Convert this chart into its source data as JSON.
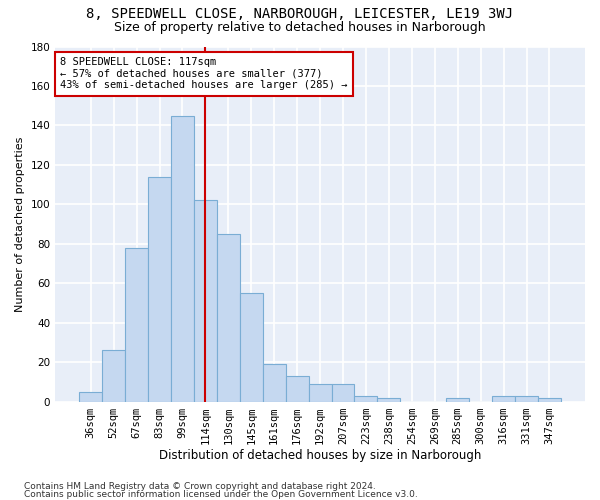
{
  "title1": "8, SPEEDWELL CLOSE, NARBOROUGH, LEICESTER, LE19 3WJ",
  "title2": "Size of property relative to detached houses in Narborough",
  "xlabel": "Distribution of detached houses by size in Narborough",
  "ylabel": "Number of detached properties",
  "bar_labels": [
    "36sqm",
    "52sqm",
    "67sqm",
    "83sqm",
    "99sqm",
    "114sqm",
    "130sqm",
    "145sqm",
    "161sqm",
    "176sqm",
    "192sqm",
    "207sqm",
    "223sqm",
    "238sqm",
    "254sqm",
    "269sqm",
    "285sqm",
    "300sqm",
    "316sqm",
    "331sqm",
    "347sqm"
  ],
  "bar_values": [
    5,
    26,
    78,
    114,
    145,
    102,
    85,
    55,
    19,
    13,
    9,
    9,
    3,
    2,
    0,
    0,
    2,
    0,
    3,
    3,
    2
  ],
  "bar_color": "#c5d8f0",
  "bar_edgecolor": "#7aadd4",
  "vline_x_idx": 5,
  "vline_color": "#cc0000",
  "annotation_text": "8 SPEEDWELL CLOSE: 117sqm\n← 57% of detached houses are smaller (377)\n43% of semi-detached houses are larger (285) →",
  "annotation_box_edgecolor": "#cc0000",
  "annotation_box_facecolor": "#ffffff",
  "ylim": [
    0,
    180
  ],
  "yticks": [
    0,
    20,
    40,
    60,
    80,
    100,
    120,
    140,
    160,
    180
  ],
  "footer1": "Contains HM Land Registry data © Crown copyright and database right 2024.",
  "footer2": "Contains public sector information licensed under the Open Government Licence v3.0.",
  "fig_facecolor": "#ffffff",
  "axes_facecolor": "#e8eef8",
  "grid_color": "#ffffff",
  "title1_fontsize": 10,
  "title2_fontsize": 9,
  "xlabel_fontsize": 8.5,
  "ylabel_fontsize": 8,
  "tick_fontsize": 7.5,
  "footer_fontsize": 6.5,
  "annot_fontsize": 7.5
}
